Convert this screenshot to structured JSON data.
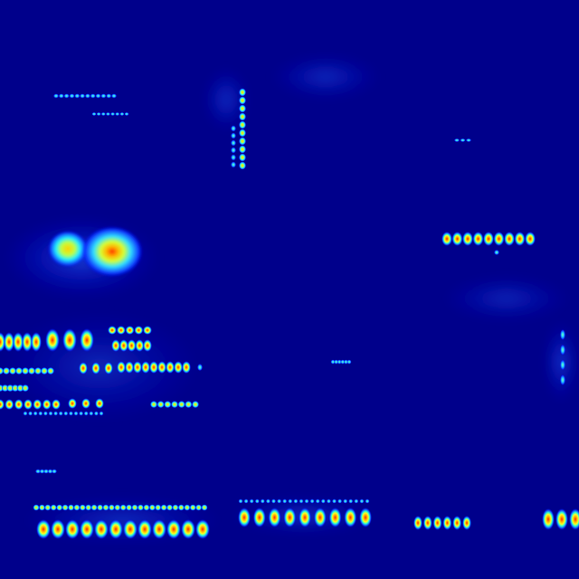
{
  "image": {
    "kind": "heatmap",
    "colormap": "jet",
    "background_color": "#00008b",
    "colors": {
      "low": "#00008b",
      "mid_low": "#0000ff",
      "mid": "#00ffff",
      "mid_high": "#ffff00",
      "high": "#ff0000"
    },
    "description_visible_text": ""
  }
}
